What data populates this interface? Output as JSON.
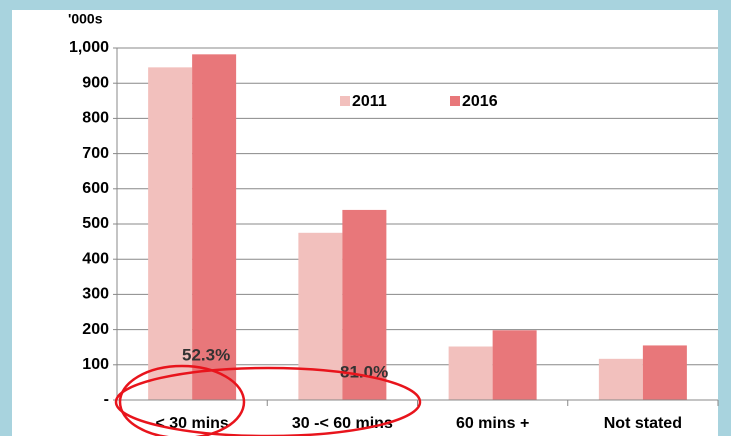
{
  "chart_data": {
    "type": "bar",
    "ylabel": "'000s",
    "categories": [
      "< 30 mins",
      "30 -< 60 mins",
      "60 mins +",
      "Not stated"
    ],
    "series": [
      {
        "name": "2011",
        "color": "#f2c0bd",
        "values": [
          945,
          475,
          152,
          117
        ]
      },
      {
        "name": "2016",
        "color": "#e8777a",
        "values": [
          982,
          540,
          198,
          155
        ]
      }
    ],
    "ylim": [
      0,
      1000
    ],
    "yticks": [
      {
        "value": 0,
        "label": "-"
      },
      100,
      200,
      300,
      400,
      500,
      600,
      700,
      800,
      900,
      {
        "value": 1000,
        "label": "1,000"
      }
    ],
    "grid": true,
    "annotations": [
      "52.3%",
      "81.0%"
    ]
  }
}
